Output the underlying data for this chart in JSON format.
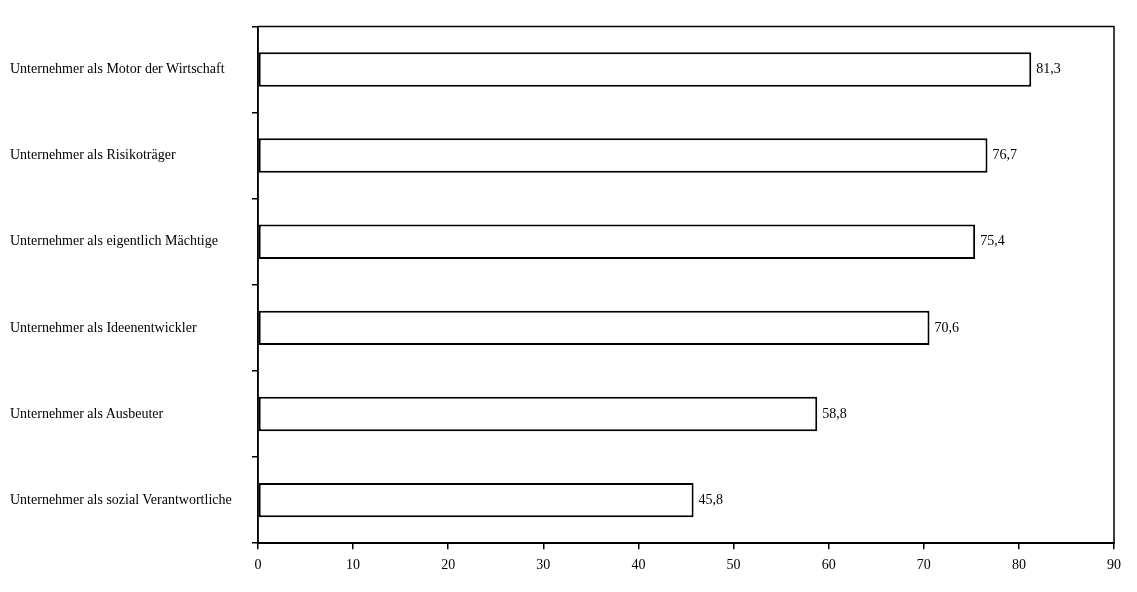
{
  "chart_data": {
    "type": "bar",
    "orientation": "horizontal",
    "categories": [
      "Unternehmer als Motor der Wirtschaft",
      "Unternehmer als Risikoträger",
      "Unternehmer als eigentlich Mächtige",
      "Unternehmer als Ideenentwickler",
      "Unternehmer als Ausbeuter",
      "Unternehmer als sozial Verantwortliche"
    ],
    "values": [
      81.3,
      76.7,
      75.4,
      70.6,
      58.8,
      45.8
    ],
    "value_labels": [
      "81,3",
      "76,7",
      "75,4",
      "70,6",
      "58,8",
      "45,8"
    ],
    "color": "#ffffff",
    "xlim": [
      0,
      90
    ],
    "xticks": [
      0,
      10,
      20,
      30,
      40,
      50,
      60,
      70,
      80,
      90
    ],
    "grid": false,
    "legend": false
  }
}
